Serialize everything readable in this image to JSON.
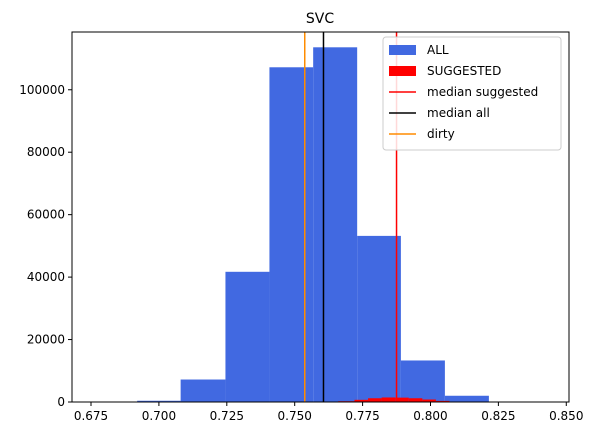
{
  "chart_data": {
    "type": "histogram",
    "title": "SVC",
    "xlabel": "",
    "ylabel": "",
    "xlim": [
      0.668,
      0.851
    ],
    "ylim": [
      0,
      118500
    ],
    "xticks": [
      0.675,
      0.7,
      0.725,
      0.75,
      0.775,
      0.8,
      0.825,
      0.85
    ],
    "xtick_labels": [
      "0.675",
      "0.700",
      "0.725",
      "0.750",
      "0.775",
      "0.800",
      "0.825",
      "0.850"
    ],
    "yticks": [
      0,
      20000,
      40000,
      60000,
      80000,
      100000
    ],
    "ytick_labels": [
      "0",
      "20000",
      "40000",
      "60000",
      "80000",
      "100000"
    ],
    "grid": false,
    "legend_position": "top-right",
    "series": [
      {
        "name": "ALL",
        "color": "#4169e1",
        "bins": [
          {
            "x0": 0.676,
            "x1": 0.692,
            "count": 50
          },
          {
            "x0": 0.692,
            "x1": 0.708,
            "count": 400
          },
          {
            "x0": 0.708,
            "x1": 0.7245,
            "count": 7200
          },
          {
            "x0": 0.7245,
            "x1": 0.7407,
            "count": 41700
          },
          {
            "x0": 0.7407,
            "x1": 0.7568,
            "count": 107200
          },
          {
            "x0": 0.7568,
            "x1": 0.773,
            "count": 113600
          },
          {
            "x0": 0.773,
            "x1": 0.7891,
            "count": 53200
          },
          {
            "x0": 0.7891,
            "x1": 0.8053,
            "count": 13300
          },
          {
            "x0": 0.8053,
            "x1": 0.8215,
            "count": 2000
          },
          {
            "x0": 0.8215,
            "x1": 0.8376,
            "count": 150
          }
        ]
      },
      {
        "name": "SUGGESTED",
        "color": "#ff0000",
        "bins": [
          {
            "x0": 0.766,
            "x1": 0.772,
            "count": 250
          },
          {
            "x0": 0.772,
            "x1": 0.777,
            "count": 700
          },
          {
            "x0": 0.777,
            "x1": 0.782,
            "count": 1200
          },
          {
            "x0": 0.782,
            "x1": 0.787,
            "count": 1450
          },
          {
            "x0": 0.787,
            "x1": 0.792,
            "count": 1400
          },
          {
            "x0": 0.792,
            "x1": 0.797,
            "count": 1200
          },
          {
            "x0": 0.797,
            "x1": 0.802,
            "count": 800
          },
          {
            "x0": 0.802,
            "x1": 0.807,
            "count": 350
          },
          {
            "x0": 0.807,
            "x1": 0.812,
            "count": 120
          }
        ]
      }
    ],
    "vlines": [
      {
        "name": "median suggested",
        "x": 0.7875,
        "color": "#ff0000"
      },
      {
        "name": "median all",
        "x": 0.7606,
        "color": "#000000"
      },
      {
        "name": "dirty",
        "x": 0.7537,
        "color": "#ff8c00"
      }
    ],
    "legend": [
      {
        "label": "ALL",
        "kind": "patch",
        "color": "#4169e1"
      },
      {
        "label": "SUGGESTED",
        "kind": "patch",
        "color": "#ff0000"
      },
      {
        "label": "median suggested",
        "kind": "line",
        "color": "#ff0000"
      },
      {
        "label": "median all",
        "kind": "line",
        "color": "#000000"
      },
      {
        "label": "dirty",
        "kind": "line",
        "color": "#ff8c00"
      }
    ]
  }
}
